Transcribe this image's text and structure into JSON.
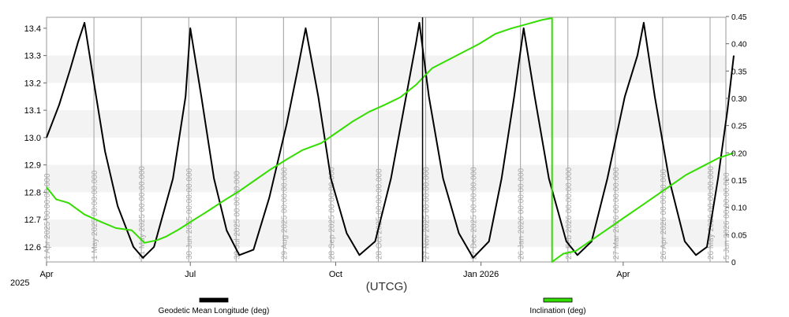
{
  "chart_data": {
    "type": "line",
    "xlabel": "(UTCG)",
    "year_label": "2025",
    "x_range": [
      "2025-04-01",
      "2026-06-05"
    ],
    "x_tick_labels": [
      {
        "label": "Apr",
        "date": "2025-04-01"
      },
      {
        "label": "Jul",
        "date": "2025-07-01"
      },
      {
        "label": "Oct",
        "date": "2025-10-01"
      },
      {
        "label": "Jan 2026",
        "date": "2026-01-01"
      },
      {
        "label": "Apr",
        "date": "2026-04-01"
      }
    ],
    "event_lines": [
      {
        "date": "2025-04-01",
        "label": "1 Apr 2025 00:00:00.000"
      },
      {
        "date": "2025-05-01",
        "label": "1 May 2025 00:00:00.000"
      },
      {
        "date": "2025-05-31",
        "label": "31 May 2025 00:00:00.000"
      },
      {
        "date": "2025-06-30",
        "label": "30 Jun 2025 00:00:00.000"
      },
      {
        "date": "2025-07-30",
        "label": "30 Jul 2025 00:00:00.000"
      },
      {
        "date": "2025-08-29",
        "label": "29 Aug 2025 00:00:00.000"
      },
      {
        "date": "2025-09-28",
        "label": "28 Sep 2025 00:00:00.000"
      },
      {
        "date": "2025-10-28",
        "label": "28 Oct 2025 00:00:00.000"
      },
      {
        "date": "2025-11-27",
        "label": "27 Nov 2025 00:00:00.000"
      },
      {
        "date": "2025-12-27",
        "label": "27 Dec 2025 00:00:00.000"
      },
      {
        "date": "2026-01-26",
        "label": "26 Jan 2026 00:00:00.000"
      },
      {
        "date": "2026-02-25",
        "label": "25 Feb 2026 00:00:00.000"
      },
      {
        "date": "2026-03-27",
        "label": "27 Mar 2026 00:00:00.000"
      },
      {
        "date": "2026-04-26",
        "label": "26 Apr 2026 00:00:00.000"
      },
      {
        "date": "2026-05-26",
        "label": "26 May 2026 00:00:00.000"
      },
      {
        "date": "2026-06-05",
        "label": "5 Jun 2026 00:00:00.000"
      }
    ],
    "cursor_date": "2025-11-25",
    "y_left": {
      "ticks": [
        "12.6",
        "12.7",
        "12.8",
        "12.9",
        "13.0",
        "13.1",
        "13.2",
        "13.3",
        "13.4"
      ],
      "ylim": [
        12.545,
        13.44
      ]
    },
    "y_right": {
      "ticks": [
        "0",
        "0.05",
        "0.10",
        "0.15",
        "0.20",
        "0.25",
        "0.30",
        "0.35",
        "0.40",
        "0.45"
      ],
      "ylim": [
        0,
        0.4485
      ]
    },
    "series": [
      {
        "name": "Geodetic Mean Longitude (deg)",
        "axis": "left",
        "color": "#000000",
        "points": [
          [
            "2025-04-01",
            13.0
          ],
          [
            "2025-04-09",
            13.12
          ],
          [
            "2025-04-16",
            13.25
          ],
          [
            "2025-04-21",
            13.35
          ],
          [
            "2025-04-25",
            13.42
          ],
          [
            "2025-05-01",
            13.2
          ],
          [
            "2025-05-08",
            12.95
          ],
          [
            "2025-05-16",
            12.75
          ],
          [
            "2025-05-26",
            12.6
          ],
          [
            "2025-06-01",
            12.56
          ],
          [
            "2025-06-08",
            12.6
          ],
          [
            "2025-06-20",
            12.85
          ],
          [
            "2025-06-28",
            13.15
          ],
          [
            "2025-07-01",
            13.4
          ],
          [
            "2025-07-08",
            13.15
          ],
          [
            "2025-07-16",
            12.85
          ],
          [
            "2025-07-24",
            12.66
          ],
          [
            "2025-08-01",
            12.57
          ],
          [
            "2025-08-10",
            12.59
          ],
          [
            "2025-08-20",
            12.78
          ],
          [
            "2025-08-31",
            13.05
          ],
          [
            "2025-09-07",
            13.25
          ],
          [
            "2025-09-12",
            13.4
          ],
          [
            "2025-09-20",
            13.15
          ],
          [
            "2025-09-28",
            12.85
          ],
          [
            "2025-10-08",
            12.65
          ],
          [
            "2025-10-16",
            12.57
          ],
          [
            "2025-10-26",
            12.62
          ],
          [
            "2025-11-05",
            12.85
          ],
          [
            "2025-11-13",
            13.1
          ],
          [
            "2025-11-21",
            13.35
          ],
          [
            "2025-11-23",
            13.42
          ],
          [
            "2025-11-29",
            13.15
          ],
          [
            "2025-12-08",
            12.85
          ],
          [
            "2025-12-18",
            12.65
          ],
          [
            "2025-12-27",
            12.56
          ],
          [
            "2026-01-06",
            12.62
          ],
          [
            "2026-01-14",
            12.85
          ],
          [
            "2026-01-22",
            13.15
          ],
          [
            "2026-01-28",
            13.4
          ],
          [
            "2026-02-04",
            13.15
          ],
          [
            "2026-02-13",
            12.85
          ],
          [
            "2026-02-24",
            12.62
          ],
          [
            "2026-03-03",
            12.57
          ],
          [
            "2026-03-12",
            12.62
          ],
          [
            "2026-03-22",
            12.85
          ],
          [
            "2026-04-02",
            13.15
          ],
          [
            "2026-04-10",
            13.3
          ],
          [
            "2026-04-14",
            13.42
          ],
          [
            "2026-04-21",
            13.15
          ],
          [
            "2026-04-30",
            12.85
          ],
          [
            "2026-05-10",
            12.62
          ],
          [
            "2026-05-17",
            12.57
          ],
          [
            "2026-05-24",
            12.6
          ],
          [
            "2026-05-31",
            12.85
          ],
          [
            "2026-06-06",
            13.1
          ],
          [
            "2026-06-10",
            13.3
          ]
        ]
      },
      {
        "name": "Inclination (deg)",
        "axis": "right",
        "color": "#33dd00",
        "points": [
          [
            "2025-04-01",
            0.137
          ],
          [
            "2025-04-07",
            0.115
          ],
          [
            "2025-04-15",
            0.108
          ],
          [
            "2025-04-25",
            0.087
          ],
          [
            "2025-05-05",
            0.074
          ],
          [
            "2025-05-15",
            0.062
          ],
          [
            "2025-05-25",
            0.058
          ],
          [
            "2025-06-02",
            0.035
          ],
          [
            "2025-06-10",
            0.04
          ],
          [
            "2025-06-16",
            0.047
          ],
          [
            "2025-06-24",
            0.06
          ],
          [
            "2025-07-02",
            0.075
          ],
          [
            "2025-07-12",
            0.093
          ],
          [
            "2025-07-22",
            0.112
          ],
          [
            "2025-08-01",
            0.13
          ],
          [
            "2025-08-11",
            0.15
          ],
          [
            "2025-08-21",
            0.17
          ],
          [
            "2025-08-31",
            0.188
          ],
          [
            "2025-09-10",
            0.205
          ],
          [
            "2025-09-22",
            0.218
          ],
          [
            "2025-10-02",
            0.238
          ],
          [
            "2025-10-12",
            0.258
          ],
          [
            "2025-10-22",
            0.275
          ],
          [
            "2025-11-01",
            0.288
          ],
          [
            "2025-11-11",
            0.302
          ],
          [
            "2025-11-21",
            0.325
          ],
          [
            "2025-12-01",
            0.355
          ],
          [
            "2025-12-11",
            0.37
          ],
          [
            "2025-12-21",
            0.385
          ],
          [
            "2025-12-31",
            0.4
          ],
          [
            "2026-01-10",
            0.418
          ],
          [
            "2026-01-20",
            0.428
          ],
          [
            "2026-01-30",
            0.436
          ],
          [
            "2026-02-09",
            0.444
          ],
          [
            "2026-02-15",
            0.447
          ],
          [
            "2026-02-15",
            0.0
          ],
          [
            "2026-02-22",
            0.015
          ],
          [
            "2026-03-02",
            0.02
          ],
          [
            "2026-03-12",
            0.04
          ],
          [
            "2026-03-22",
            0.06
          ],
          [
            "2026-04-01",
            0.08
          ],
          [
            "2026-04-11",
            0.1
          ],
          [
            "2026-04-21",
            0.12
          ],
          [
            "2026-05-01",
            0.14
          ],
          [
            "2026-05-11",
            0.16
          ],
          [
            "2026-05-21",
            0.175
          ],
          [
            "2026-05-31",
            0.19
          ],
          [
            "2026-06-10",
            0.2
          ]
        ]
      }
    ]
  }
}
